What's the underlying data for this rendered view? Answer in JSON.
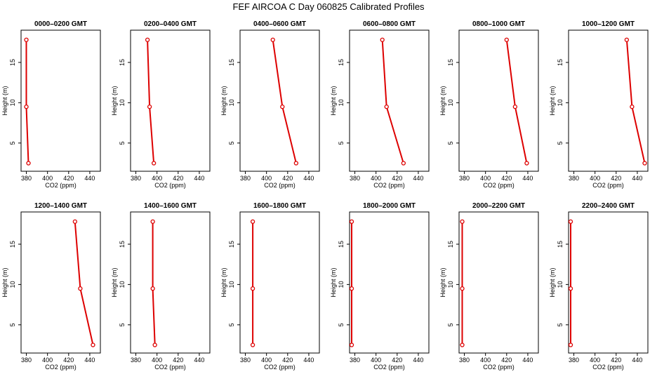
{
  "figure": {
    "title": "FEF AIRCOA C  Day 060825  Calibrated Profiles"
  },
  "chart_data": [
    {
      "type": "line",
      "title": "0000–0200 GMT",
      "xlabel": "CO2 (ppm)",
      "ylabel": "Height (m)",
      "xlim": [
        375,
        450
      ],
      "ylim": [
        1.5,
        19
      ],
      "xticks": [
        380,
        400,
        420,
        440
      ],
      "yticks": [
        5,
        10,
        15
      ],
      "series": [
        {
          "x": [
            380,
            380,
            382
          ],
          "y": [
            17.8,
            9.5,
            2.5
          ]
        }
      ]
    },
    {
      "type": "line",
      "title": "0200–0400 GMT",
      "xlabel": "CO2 (ppm)",
      "ylabel": "Height (m)",
      "xlim": [
        375,
        450
      ],
      "ylim": [
        1.5,
        19
      ],
      "xticks": [
        380,
        400,
        420,
        440
      ],
      "yticks": [
        5,
        10,
        15
      ],
      "series": [
        {
          "x": [
            391,
            393,
            397
          ],
          "y": [
            17.8,
            9.5,
            2.5
          ]
        }
      ]
    },
    {
      "type": "line",
      "title": "0400–0600 GMT",
      "xlabel": "CO2 (ppm)",
      "ylabel": "Height (m)",
      "xlim": [
        375,
        450
      ],
      "ylim": [
        1.5,
        19
      ],
      "xticks": [
        380,
        400,
        420,
        440
      ],
      "yticks": [
        5,
        10,
        15
      ],
      "series": [
        {
          "x": [
            406,
            415,
            428
          ],
          "y": [
            17.8,
            9.5,
            2.5
          ]
        }
      ]
    },
    {
      "type": "line",
      "title": "0600–0800 GMT",
      "xlabel": "CO2 (ppm)",
      "ylabel": "Height (m)",
      "xlim": [
        375,
        450
      ],
      "ylim": [
        1.5,
        19
      ],
      "xticks": [
        380,
        400,
        420,
        440
      ],
      "yticks": [
        5,
        10,
        15
      ],
      "series": [
        {
          "x": [
            406,
            410,
            426
          ],
          "y": [
            17.8,
            9.5,
            2.5
          ]
        }
      ]
    },
    {
      "type": "line",
      "title": "0800–1000 GMT",
      "xlabel": "CO2 (ppm)",
      "ylabel": "Height (m)",
      "xlim": [
        375,
        450
      ],
      "ylim": [
        1.5,
        19
      ],
      "xticks": [
        380,
        400,
        420,
        440
      ],
      "yticks": [
        5,
        10,
        15
      ],
      "series": [
        {
          "x": [
            420,
            428,
            439
          ],
          "y": [
            17.8,
            9.5,
            2.5
          ]
        }
      ]
    },
    {
      "type": "line",
      "title": "1000–1200 GMT",
      "xlabel": "CO2 (ppm)",
      "ylabel": "Height (m)",
      "xlim": [
        375,
        450
      ],
      "ylim": [
        1.5,
        19
      ],
      "xticks": [
        380,
        400,
        420,
        440
      ],
      "yticks": [
        5,
        10,
        15
      ],
      "series": [
        {
          "x": [
            430,
            435,
            447
          ],
          "y": [
            17.8,
            9.5,
            2.5
          ]
        }
      ]
    },
    {
      "type": "line",
      "title": "1200–1400 GMT",
      "xlabel": "CO2 (ppm)",
      "ylabel": "Height (m)",
      "xlim": [
        375,
        450
      ],
      "ylim": [
        1.5,
        19
      ],
      "xticks": [
        380,
        400,
        420,
        440
      ],
      "yticks": [
        5,
        10,
        15
      ],
      "series": [
        {
          "x": [
            426,
            431,
            443
          ],
          "y": [
            17.8,
            9.5,
            2.5
          ]
        }
      ]
    },
    {
      "type": "line",
      "title": "1400–1600 GMT",
      "xlabel": "CO2 (ppm)",
      "ylabel": "Height (m)",
      "xlim": [
        375,
        450
      ],
      "ylim": [
        1.5,
        19
      ],
      "xticks": [
        380,
        400,
        420,
        440
      ],
      "yticks": [
        5,
        10,
        15
      ],
      "series": [
        {
          "x": [
            396,
            396,
            398
          ],
          "y": [
            17.8,
            9.5,
            2.5
          ]
        }
      ]
    },
    {
      "type": "line",
      "title": "1600–1800 GMT",
      "xlabel": "CO2 (ppm)",
      "ylabel": "Height (m)",
      "xlim": [
        375,
        450
      ],
      "ylim": [
        1.5,
        19
      ],
      "xticks": [
        380,
        400,
        420,
        440
      ],
      "yticks": [
        5,
        10,
        15
      ],
      "series": [
        {
          "x": [
            387,
            387,
            387
          ],
          "y": [
            17.8,
            9.5,
            2.5
          ]
        }
      ]
    },
    {
      "type": "line",
      "title": "1800–2000 GMT",
      "xlabel": "CO2 (ppm)",
      "ylabel": "Height (m)",
      "xlim": [
        375,
        450
      ],
      "ylim": [
        1.5,
        19
      ],
      "xticks": [
        380,
        400,
        420,
        440
      ],
      "yticks": [
        5,
        10,
        15
      ],
      "series": [
        {
          "x": [
            377,
            377,
            377
          ],
          "y": [
            17.8,
            9.5,
            2.5
          ]
        }
      ]
    },
    {
      "type": "line",
      "title": "2000–2200 GMT",
      "xlabel": "CO2 (ppm)",
      "ylabel": "Height (m)",
      "xlim": [
        375,
        450
      ],
      "ylim": [
        1.5,
        19
      ],
      "xticks": [
        380,
        400,
        420,
        440
      ],
      "yticks": [
        5,
        10,
        15
      ],
      "series": [
        {
          "x": [
            378,
            378,
            378
          ],
          "y": [
            17.8,
            9.5,
            2.5
          ]
        }
      ]
    },
    {
      "type": "line",
      "title": "2200–2400 GMT",
      "xlabel": "CO2 (ppm)",
      "ylabel": "Height (m)",
      "xlim": [
        375,
        450
      ],
      "ylim": [
        1.5,
        19
      ],
      "xticks": [
        380,
        400,
        420,
        440
      ],
      "yticks": [
        5,
        10,
        15
      ],
      "series": [
        {
          "x": [
            377,
            377,
            377
          ],
          "y": [
            17.8,
            9.5,
            2.5
          ]
        }
      ]
    }
  ],
  "colors": {
    "series": "#dd0000",
    "axis": "#000000",
    "background": "#ffffff"
  },
  "legend": "none",
  "grid": false
}
